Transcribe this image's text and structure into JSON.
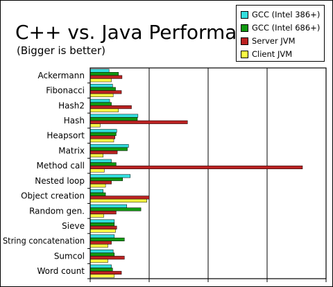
{
  "title": "C++ vs. Java Performance",
  "subtitle": "(Bigger is better)",
  "chart_data": {
    "type": "bar",
    "orientation": "horizontal",
    "title": "C++ vs. Java Performance",
    "subtitle": "(Bigger is better)",
    "xlabel": "",
    "ylabel": "",
    "xlim": [
      0,
      4
    ],
    "grid": true,
    "legend_position": "top-right",
    "categories": [
      "Ackermann",
      "Fibonacci",
      "Hash2",
      "Hash",
      "Heapsort",
      "Matrix",
      "Method call",
      "Nested loop",
      "Object creation",
      "Random gen.",
      "Sieve",
      "String concatenation",
      "Sumcol",
      "Word count"
    ],
    "series": [
      {
        "name": "GCC (Intel 386+)",
        "color": "#33dddd",
        "values": [
          0.32,
          0.38,
          0.33,
          0.81,
          0.45,
          0.65,
          0.36,
          0.68,
          0.22,
          0.62,
          0.41,
          0.41,
          0.39,
          0.36
        ]
      },
      {
        "name": "GCC (Intel 686+)",
        "color": "#119911",
        "values": [
          0.48,
          0.43,
          0.36,
          0.8,
          0.44,
          0.63,
          0.44,
          0.55,
          0.26,
          0.86,
          0.41,
          0.58,
          0.41,
          0.38
        ]
      },
      {
        "name": "Server JVM",
        "color": "#bb2222",
        "values": [
          0.54,
          0.53,
          0.7,
          1.65,
          0.42,
          0.46,
          3.6,
          0.36,
          1.0,
          0.44,
          0.45,
          0.36,
          0.58,
          0.53
        ]
      },
      {
        "name": "Client JVM",
        "color": "#ffff44",
        "values": [
          0.36,
          0.39,
          0.48,
          0.17,
          0.4,
          0.22,
          0.24,
          0.26,
          0.96,
          0.23,
          0.43,
          0.3,
          0.3,
          0.41
        ]
      }
    ]
  }
}
